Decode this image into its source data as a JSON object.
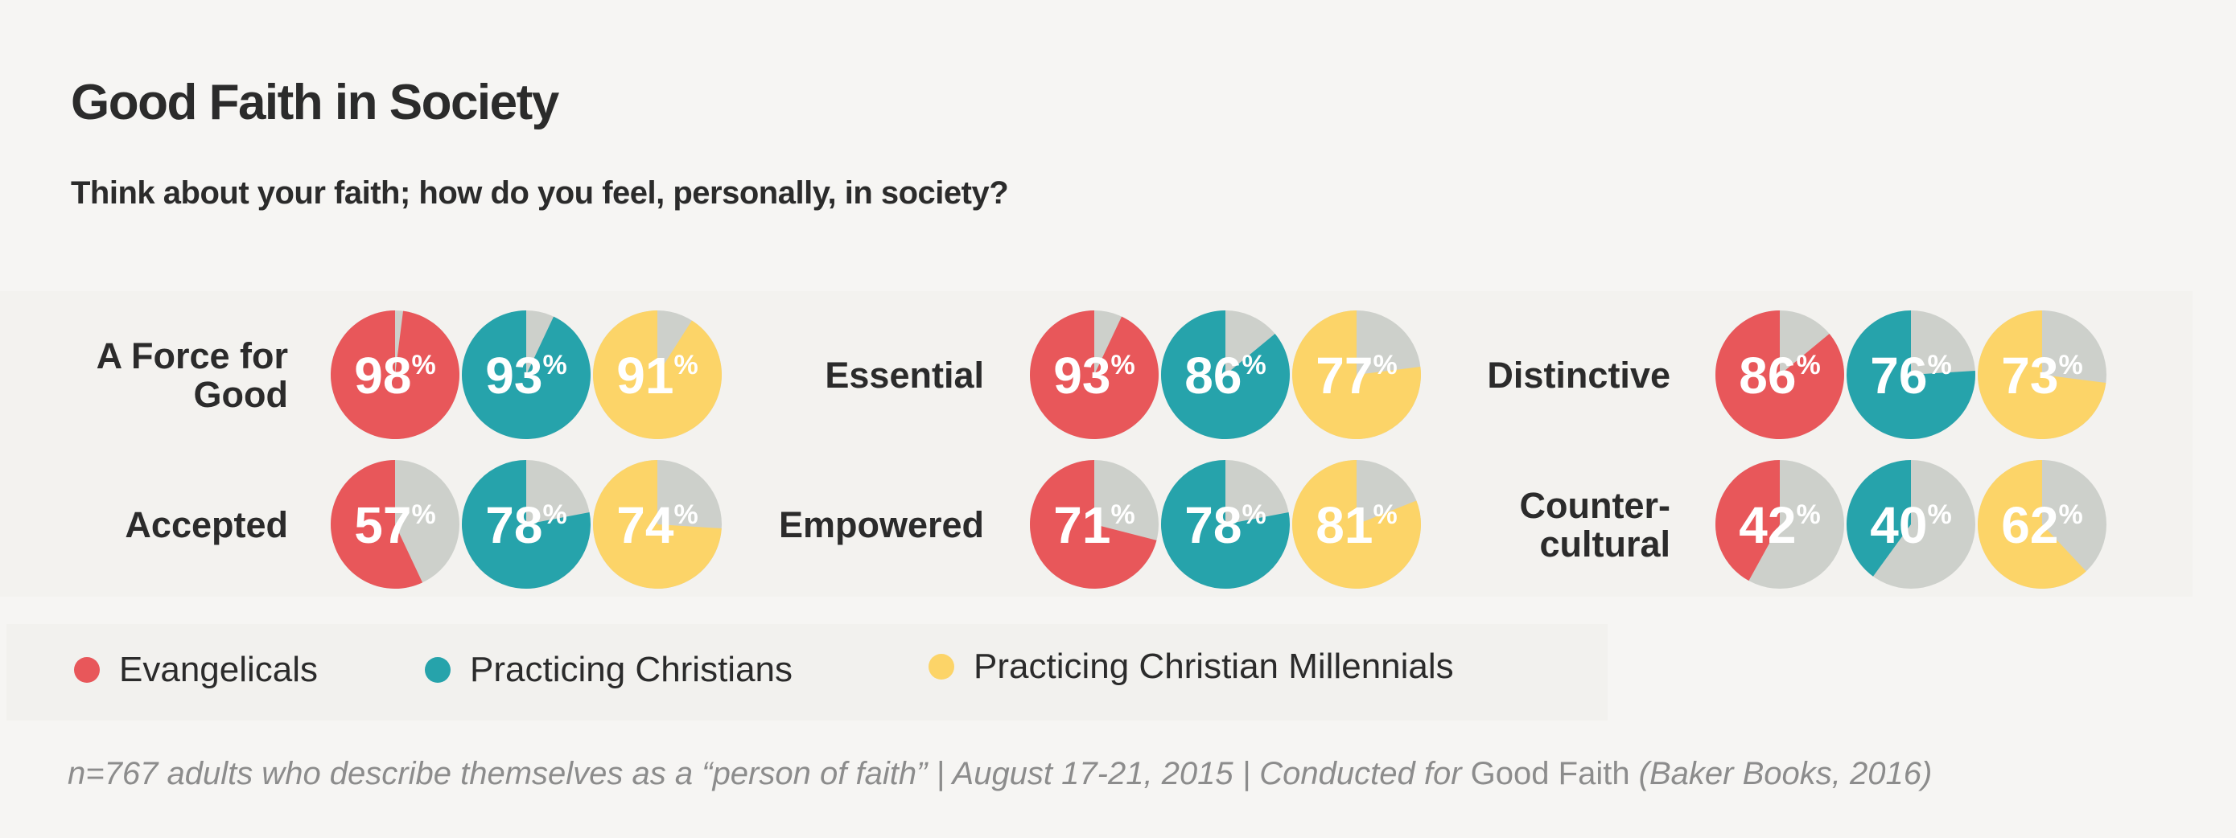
{
  "title": "Good Faith in Society",
  "subtitle": "Think about your faith; how do you feel, personally, in society?",
  "colors": {
    "Evangelicals": "#e8575a",
    "Practicing Christians": "#26a3ab",
    "Practicing Christian Millennials": "#fcd468",
    "remainder": "#cdd0cb"
  },
  "legend": [
    {
      "label": "Evangelicals",
      "color": "#e8575a"
    },
    {
      "label": "Practicing Christians",
      "color": "#26a3ab"
    },
    {
      "label": "Practicing Christian Millennials",
      "color": "#fcd468"
    }
  ],
  "footnote": {
    "part1": "n=767 adults who describe themselves as a “person of faith” | August 17-21, 2015 |  Conducted for ",
    "book": "Good Faith",
    "part2": " (Baker Books, 2016)"
  },
  "chart_data": {
    "type": "pie",
    "unit": "%",
    "series_names": [
      "Evangelicals",
      "Practicing Christians",
      "Practicing Christian Millennials"
    ],
    "groups": [
      {
        "label": [
          "A Force for",
          "Good"
        ],
        "values": [
          98,
          93,
          91
        ]
      },
      {
        "label": [
          "Accepted"
        ],
        "values": [
          57,
          78,
          74
        ]
      },
      {
        "label": [
          "Essential"
        ],
        "values": [
          93,
          86,
          77
        ]
      },
      {
        "label": [
          "Empowered"
        ],
        "values": [
          71,
          78,
          81
        ]
      },
      {
        "label": [
          "Distinctive"
        ],
        "values": [
          86,
          76,
          73
        ]
      },
      {
        "label": [
          "Counter-",
          "cultural"
        ],
        "values": [
          42,
          40,
          62
        ]
      }
    ]
  }
}
